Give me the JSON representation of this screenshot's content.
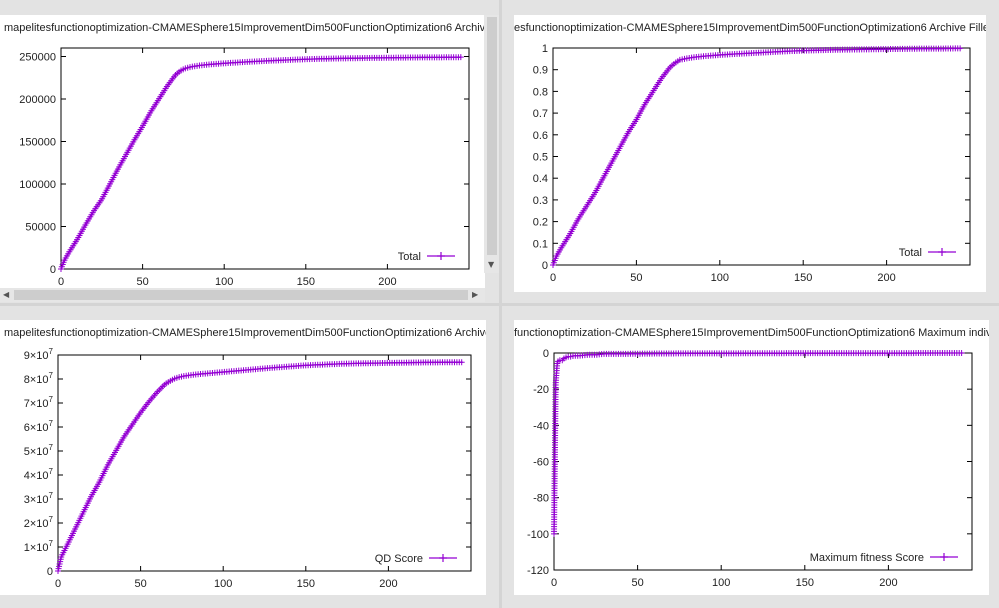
{
  "panels": [
    {
      "title": "mapelitesfunctionoptimization-CMAMESphere15ImprovementDim500FunctionOptimization6 Archive Fi",
      "legend": "Total",
      "scrollbar_arrows": {
        "down": "▼",
        "left": "◀",
        "right": "▶"
      }
    },
    {
      "title": "esfunctionoptimization-CMAMESphere15ImprovementDim500FunctionOptimization6 Archive Filled Bins",
      "legend": "Total"
    },
    {
      "title": "mapelitesfunctionoptimization-CMAMESphere15ImprovementDim500FunctionOptimization6 Archive QD",
      "legend": "QD Score"
    },
    {
      "title": "functionoptimization-CMAMESphere15ImprovementDim500FunctionOptimization6 Maximum individual",
      "legend": "Maximum fitness Score"
    }
  ],
  "chart_data": [
    {
      "type": "line",
      "series": [
        {
          "name": "Total",
          "color": "#9400D3",
          "x": [
            0,
            2,
            5,
            10,
            15,
            20,
            25,
            30,
            35,
            40,
            45,
            50,
            55,
            60,
            65,
            70,
            73,
            76,
            80,
            85,
            90,
            100,
            110,
            120,
            130,
            140,
            150,
            160,
            170,
            180,
            190,
            200,
            210,
            220,
            230,
            240,
            245
          ],
          "y": [
            0,
            10000,
            20000,
            35000,
            52000,
            68000,
            82000,
            100000,
            118000,
            135000,
            152000,
            168000,
            185000,
            200000,
            215000,
            228000,
            233000,
            236000,
            238000,
            239500,
            240500,
            242000,
            243200,
            244300,
            245200,
            246000,
            246800,
            247300,
            247700,
            248000,
            248300,
            248500,
            248700,
            248900,
            249000,
            249100,
            249200
          ]
        }
      ],
      "xlim": [
        0,
        250
      ],
      "ylim": [
        0,
        260000
      ],
      "xticks": [
        0,
        50,
        100,
        150,
        200
      ],
      "yticks": [
        0,
        50000,
        100000,
        150000,
        200000,
        250000
      ],
      "ytick_labels": [
        "0",
        "50000",
        "100000",
        "150000",
        "200000",
        "250000"
      ],
      "legend_position": "bottom-right"
    },
    {
      "type": "line",
      "series": [
        {
          "name": "Total",
          "color": "#9400D3",
          "x": [
            0,
            2,
            5,
            10,
            15,
            20,
            25,
            30,
            35,
            40,
            45,
            50,
            55,
            60,
            65,
            70,
            73,
            76,
            80,
            85,
            90,
            100,
            110,
            120,
            130,
            140,
            150,
            160,
            170,
            180,
            190,
            200,
            210,
            220,
            230,
            240,
            245
          ],
          "y": [
            0,
            0.04,
            0.08,
            0.14,
            0.21,
            0.27,
            0.33,
            0.4,
            0.47,
            0.54,
            0.61,
            0.67,
            0.74,
            0.8,
            0.86,
            0.91,
            0.93,
            0.945,
            0.952,
            0.958,
            0.962,
            0.968,
            0.973,
            0.977,
            0.981,
            0.985,
            0.988,
            0.99,
            0.992,
            0.993,
            0.994,
            0.995,
            0.996,
            0.997,
            0.997,
            0.998,
            0.998
          ]
        }
      ],
      "xlim": [
        0,
        250
      ],
      "ylim": [
        0,
        1
      ],
      "xticks": [
        0,
        50,
        100,
        150,
        200
      ],
      "yticks": [
        0,
        0.1,
        0.2,
        0.3,
        0.4,
        0.5,
        0.6,
        0.7,
        0.8,
        0.9,
        1
      ],
      "ytick_labels": [
        "0",
        "0.1",
        "0.2",
        "0.3",
        "0.4",
        "0.5",
        "0.6",
        "0.7",
        "0.8",
        "0.9",
        "1"
      ],
      "legend_position": "bottom-right"
    },
    {
      "type": "line",
      "series": [
        {
          "name": "QD Score",
          "color": "#9400D3",
          "x": [
            0,
            2,
            5,
            10,
            15,
            20,
            25,
            30,
            35,
            40,
            45,
            50,
            55,
            60,
            65,
            70,
            73,
            76,
            80,
            85,
            90,
            100,
            110,
            120,
            130,
            140,
            150,
            160,
            170,
            180,
            190,
            200,
            210,
            220,
            230,
            240,
            245
          ],
          "y": [
            0,
            6000000,
            10000000,
            17000000,
            24000000,
            31000000,
            37000000,
            44000000,
            50000000,
            56000000,
            61000000,
            66000000,
            70500000,
            74500000,
            78000000,
            80000000,
            80700000,
            81200000,
            81600000,
            82000000,
            82300000,
            82900000,
            83500000,
            84100000,
            84700000,
            85200000,
            85700000,
            86000000,
            86300000,
            86500000,
            86600000,
            86700000,
            86800000,
            86900000,
            86950000,
            87000000,
            87000000
          ]
        }
      ],
      "xlim": [
        0,
        250
      ],
      "ylim": [
        0,
        90000000
      ],
      "xticks": [
        0,
        50,
        100,
        150,
        200
      ],
      "yticks": [
        0,
        10000000,
        20000000,
        30000000,
        40000000,
        50000000,
        60000000,
        70000000,
        80000000,
        90000000
      ],
      "ytick_labels": [
        {
          "m": "0",
          "e": ""
        },
        {
          "m": "1×10",
          "e": "7"
        },
        {
          "m": "2×10",
          "e": "7"
        },
        {
          "m": "3×10",
          "e": "7"
        },
        {
          "m": "4×10",
          "e": "7"
        },
        {
          "m": "5×10",
          "e": "7"
        },
        {
          "m": "6×10",
          "e": "7"
        },
        {
          "m": "7×10",
          "e": "7"
        },
        {
          "m": "8×10",
          "e": "7"
        },
        {
          "m": "9×10",
          "e": "7"
        }
      ],
      "legend_position": "bottom-right"
    },
    {
      "type": "line",
      "series": [
        {
          "name": "Maximum fitness Score",
          "color": "#9400D3",
          "x": [
            0,
            1,
            2,
            3,
            4,
            5,
            6,
            8,
            10,
            12,
            15,
            20,
            25,
            30,
            40,
            50,
            60,
            80,
            100,
            120,
            140,
            160,
            180,
            200,
            220,
            240,
            245
          ],
          "y": [
            -100,
            -17,
            -5,
            -4,
            -4,
            -4,
            -3,
            -2,
            -2,
            -1.5,
            -1.5,
            -1,
            -1,
            -0.5,
            -0.5,
            -0.4,
            -0.3,
            -0.2,
            -0.2,
            -0.15,
            -0.1,
            -0.1,
            -0.05,
            -0.05,
            -0.03,
            -0.02,
            -0.02
          ]
        }
      ],
      "xlim": [
        0,
        250
      ],
      "ylim": [
        -120,
        0
      ],
      "xticks": [
        0,
        50,
        100,
        150,
        200
      ],
      "yticks": [
        -120,
        -100,
        -80,
        -60,
        -40,
        -20,
        0
      ],
      "ytick_labels": [
        "-120",
        "-100",
        "-80",
        "-60",
        "-40",
        "-20",
        "0"
      ],
      "legend_position": "bottom-right"
    }
  ]
}
